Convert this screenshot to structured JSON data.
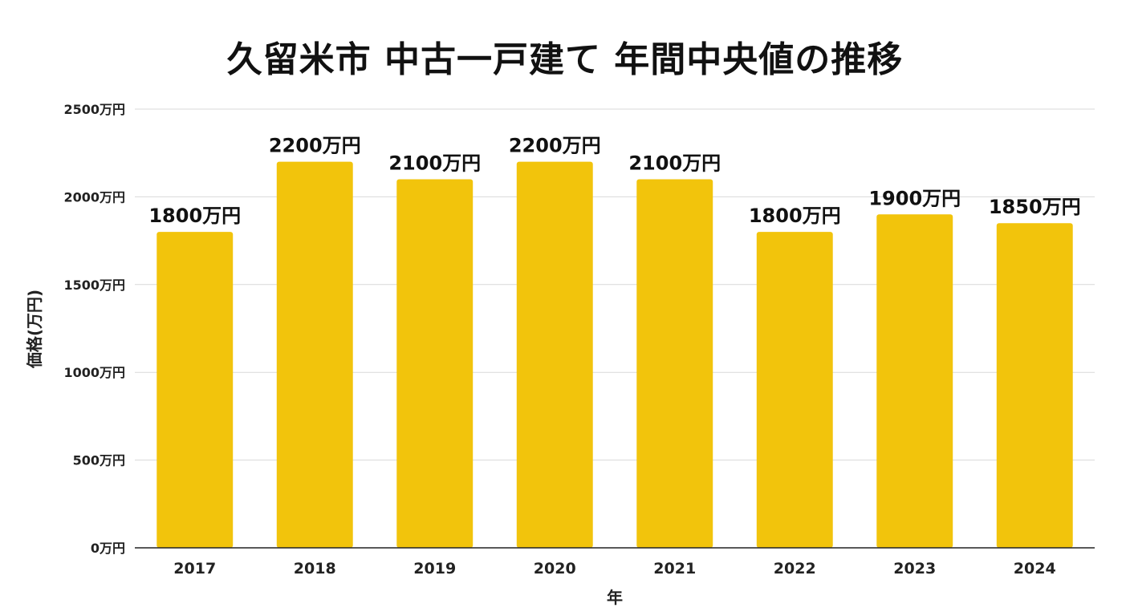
{
  "chart_data": {
    "type": "bar",
    "title": "久留米市 中古一戸建て 年間中央値の推移",
    "xlabel": "年",
    "ylabel": "価格(万円)",
    "categories": [
      "2017",
      "2018",
      "2019",
      "2020",
      "2021",
      "2022",
      "2023",
      "2024"
    ],
    "values": [
      1800,
      2200,
      2100,
      2200,
      2100,
      1800,
      1900,
      1850
    ],
    "data_labels": [
      "1800万円",
      "2200万円",
      "2100万円",
      "2200万円",
      "2100万円",
      "1800万円",
      "1900万円",
      "1850万円"
    ],
    "y_ticks": [
      0,
      500,
      1000,
      1500,
      2000,
      2500
    ],
    "y_tick_labels": [
      "0万円",
      "500万円",
      "1000万円",
      "1500万円",
      "2000万円",
      "2500万円"
    ],
    "ylim": [
      0,
      2500
    ],
    "grid": true,
    "bar_color": "#F2C40C",
    "grid_color": "#D9D9D9",
    "axis_color": "#222222"
  }
}
